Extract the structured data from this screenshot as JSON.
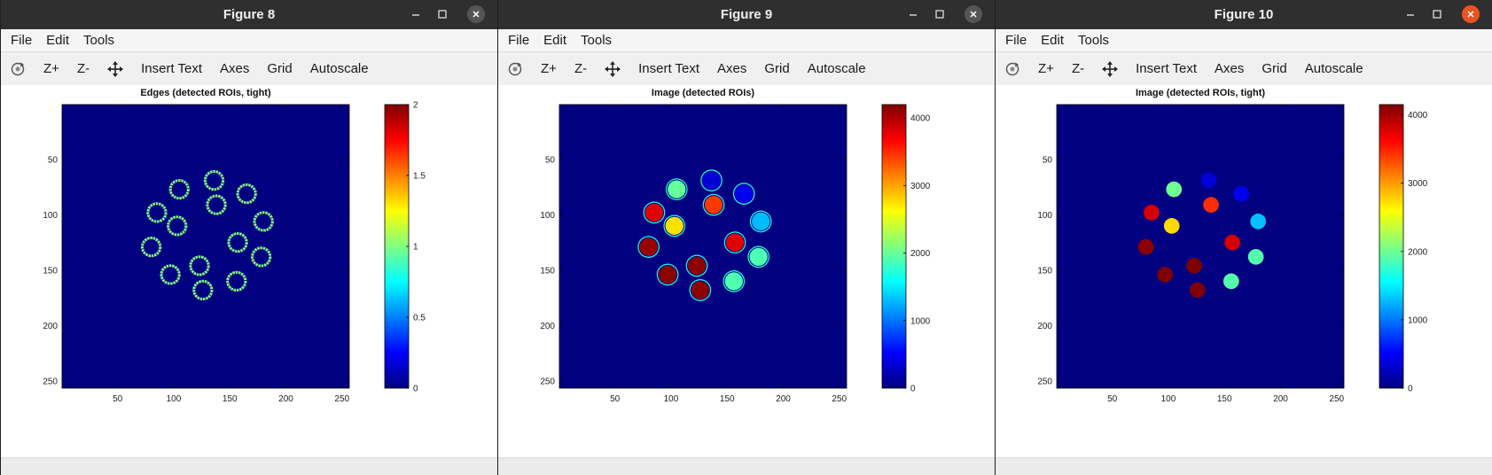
{
  "menu": {
    "file": "File",
    "edit": "Edit",
    "tools": "Tools"
  },
  "toolbar": {
    "zoom_in": "Z+",
    "zoom_out": "Z-",
    "insert_text": "Insert Text",
    "axes": "Axes",
    "grid": "Grid",
    "autoscale": "Autoscale"
  },
  "icons": {
    "rotate": "rotate-icon",
    "pan": "pan-icon",
    "minimize": "minimize-icon",
    "maximize": "maximize-icon",
    "close": "close-icon"
  },
  "colors": {
    "background": "#00008f",
    "close_active": "#e95420"
  },
  "windows": [
    {
      "title": "Figure 8",
      "active": false,
      "chart_data": {
        "type": "heatmap",
        "title": "Edges (detected ROIs, tight)",
        "x_ticks": [
          50,
          100,
          150,
          200,
          250
        ],
        "y_ticks": [
          50,
          100,
          150,
          200,
          250
        ],
        "xlim": [
          0.5,
          256.5
        ],
        "ylim": [
          0.5,
          256.5
        ],
        "colormap": "jet",
        "clim": [
          0,
          2
        ],
        "colorbar_ticks": [
          0,
          0.5,
          1,
          1.5,
          2
        ],
        "colorbar_tick_labels": [
          "0",
          "0.5",
          "1",
          "1.5",
          "2"
        ],
        "background_value": 0,
        "rois": [
          {
            "x": 105,
            "y": 77,
            "r": 8,
            "value": 1,
            "ring": true
          },
          {
            "x": 136,
            "y": 69,
            "r": 8,
            "value": 1,
            "ring": true
          },
          {
            "x": 165,
            "y": 81,
            "r": 8,
            "value": 1,
            "ring": true
          },
          {
            "x": 85,
            "y": 98,
            "r": 8,
            "value": 1,
            "ring": true
          },
          {
            "x": 138,
            "y": 91,
            "r": 8,
            "value": 1,
            "ring": true
          },
          {
            "x": 103,
            "y": 110,
            "r": 8,
            "value": 1,
            "ring": true
          },
          {
            "x": 180,
            "y": 106,
            "r": 8,
            "value": 1,
            "ring": true
          },
          {
            "x": 80,
            "y": 129,
            "r": 8,
            "value": 1,
            "ring": true
          },
          {
            "x": 157,
            "y": 125,
            "r": 8,
            "value": 1,
            "ring": true
          },
          {
            "x": 178,
            "y": 138,
            "r": 8,
            "value": 1,
            "ring": true
          },
          {
            "x": 123,
            "y": 146,
            "r": 8,
            "value": 1,
            "ring": true
          },
          {
            "x": 97,
            "y": 154,
            "r": 8,
            "value": 1,
            "ring": true
          },
          {
            "x": 156,
            "y": 160,
            "r": 8,
            "value": 1,
            "ring": true
          },
          {
            "x": 126,
            "y": 168,
            "r": 8,
            "value": 1,
            "ring": true
          }
        ]
      }
    },
    {
      "title": "Figure 9",
      "active": false,
      "chart_data": {
        "type": "heatmap",
        "title": "Image (detected ROIs)",
        "x_ticks": [
          50,
          100,
          150,
          200,
          250
        ],
        "y_ticks": [
          50,
          100,
          150,
          200,
          250
        ],
        "xlim": [
          0.5,
          256.5
        ],
        "ylim": [
          0.5,
          256.5
        ],
        "colormap": "jet",
        "clim": [
          0,
          4200
        ],
        "colorbar_ticks": [
          0,
          1000,
          2000,
          3000,
          4000
        ],
        "colorbar_tick_labels": [
          "0",
          "1000",
          "2000",
          "3000",
          "4000"
        ],
        "background_value": 0,
        "outline_value": 1700,
        "rois": [
          {
            "x": 105,
            "y": 77,
            "r": 8,
            "value": 2000
          },
          {
            "x": 136,
            "y": 69,
            "r": 8,
            "value": 350
          },
          {
            "x": 165,
            "y": 81,
            "r": 8,
            "value": 450
          },
          {
            "x": 85,
            "y": 98,
            "r": 8,
            "value": 3800
          },
          {
            "x": 138,
            "y": 91,
            "r": 8,
            "value": 3450
          },
          {
            "x": 103,
            "y": 110,
            "r": 8,
            "value": 2750
          },
          {
            "x": 180,
            "y": 106,
            "r": 8,
            "value": 1300
          },
          {
            "x": 80,
            "y": 129,
            "r": 8,
            "value": 4100
          },
          {
            "x": 157,
            "y": 125,
            "r": 8,
            "value": 3800
          },
          {
            "x": 178,
            "y": 138,
            "r": 8,
            "value": 1900
          },
          {
            "x": 123,
            "y": 146,
            "r": 8,
            "value": 4150
          },
          {
            "x": 97,
            "y": 154,
            "r": 8,
            "value": 4150
          },
          {
            "x": 156,
            "y": 160,
            "r": 8,
            "value": 1900
          },
          {
            "x": 126,
            "y": 168,
            "r": 8,
            "value": 4150
          }
        ]
      }
    },
    {
      "title": "Figure 10",
      "active": true,
      "chart_data": {
        "type": "heatmap",
        "title": "Image (detected ROIs, tight)",
        "x_ticks": [
          50,
          100,
          150,
          200,
          250
        ],
        "y_ticks": [
          50,
          100,
          150,
          200,
          250
        ],
        "xlim": [
          0.5,
          256.5
        ],
        "ylim": [
          0.5,
          256.5
        ],
        "colormap": "jet",
        "clim": [
          0,
          4150
        ],
        "colorbar_ticks": [
          0,
          1000,
          2000,
          3000,
          4000
        ],
        "colorbar_tick_labels": [
          "0",
          "1000",
          "2000",
          "3000",
          "4000"
        ],
        "background_value": 0,
        "rois": [
          {
            "x": 105,
            "y": 77,
            "r": 7,
            "value": 2000
          },
          {
            "x": 136,
            "y": 69,
            "r": 7,
            "value": 350
          },
          {
            "x": 165,
            "y": 81,
            "r": 7,
            "value": 450
          },
          {
            "x": 85,
            "y": 98,
            "r": 7,
            "value": 3800
          },
          {
            "x": 138,
            "y": 91,
            "r": 7,
            "value": 3450
          },
          {
            "x": 103,
            "y": 110,
            "r": 7,
            "value": 2750
          },
          {
            "x": 180,
            "y": 106,
            "r": 7,
            "value": 1300
          },
          {
            "x": 80,
            "y": 129,
            "r": 7,
            "value": 4100
          },
          {
            "x": 157,
            "y": 125,
            "r": 7,
            "value": 3800
          },
          {
            "x": 178,
            "y": 138,
            "r": 7,
            "value": 1900
          },
          {
            "x": 123,
            "y": 146,
            "r": 7,
            "value": 4150
          },
          {
            "x": 97,
            "y": 154,
            "r": 7,
            "value": 4150
          },
          {
            "x": 156,
            "y": 160,
            "r": 7,
            "value": 1900
          },
          {
            "x": 126,
            "y": 168,
            "r": 7,
            "value": 4150
          }
        ]
      }
    }
  ]
}
